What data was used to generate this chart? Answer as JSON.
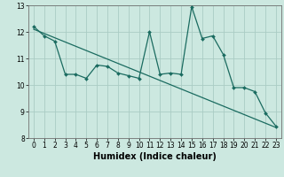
{
  "xlabel": "Humidex (Indice chaleur)",
  "background_color": "#cce8e0",
  "line_color": "#1a6b60",
  "grid_color": "#aaccC4",
  "xlim": [
    -0.5,
    23.5
  ],
  "ylim": [
    8,
    13
  ],
  "yticks": [
    8,
    9,
    10,
    11,
    12,
    13
  ],
  "xticks": [
    0,
    1,
    2,
    3,
    4,
    5,
    6,
    7,
    8,
    9,
    10,
    11,
    12,
    13,
    14,
    15,
    16,
    17,
    18,
    19,
    20,
    21,
    22,
    23
  ],
  "curve1_x": [
    0,
    1,
    2,
    3,
    4,
    5,
    6,
    7,
    8,
    9,
    10,
    11,
    12,
    13,
    14,
    15,
    16,
    17,
    18,
    19,
    20,
    21,
    22,
    23
  ],
  "curve1_y": [
    12.2,
    11.85,
    11.65,
    10.4,
    10.4,
    10.25,
    10.75,
    10.7,
    10.45,
    10.35,
    10.25,
    12.0,
    10.4,
    10.45,
    10.4,
    12.95,
    11.75,
    11.85,
    11.15,
    9.9,
    9.9,
    9.75,
    8.95,
    8.45
  ],
  "curve2_x": [
    0,
    23
  ],
  "curve2_y": [
    12.1,
    8.4
  ],
  "tick_fontsize": 5.5,
  "label_fontsize": 7
}
